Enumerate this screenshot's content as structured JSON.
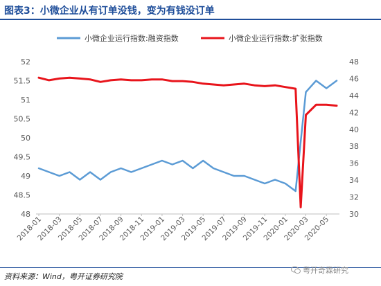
{
  "header": {
    "title": "图表3：小微企业从有订单没钱，变为有钱没订单"
  },
  "footer": {
    "source": "资料来源：Wind，粤开证券研究院",
    "watermark": "粤开奇霖研究"
  },
  "chart_data": {
    "type": "line",
    "title": "",
    "xlabel": "",
    "ylabel": "",
    "x_tick_labels": [
      "2018-01",
      "2018-03",
      "2018-05",
      "2018-07",
      "2018-09",
      "2018-11",
      "2019-01",
      "2019-03",
      "2019-05",
      "2019-07",
      "2019-09",
      "2019-11",
      "2020-01",
      "2020-03",
      "2020-05"
    ],
    "left_axis": {
      "ylim": [
        48,
        52
      ],
      "ticks": [
        48,
        48.5,
        49,
        49.5,
        50,
        50.5,
        51,
        51.5,
        52
      ]
    },
    "right_axis": {
      "ylim": [
        30,
        48
      ],
      "ticks": [
        30,
        32,
        34,
        36,
        38,
        40,
        42,
        44,
        46,
        48
      ]
    },
    "legend_position": "top",
    "grid": false,
    "x_step": 1,
    "series": [
      {
        "name": "小微企业运行指数:融资指数",
        "axis": "left",
        "color": "#5b9bd5",
        "x": [
          2018.0,
          2018.0833,
          2018.1667,
          2018.25,
          2018.3333,
          2018.4167,
          2018.5,
          2018.5833,
          2018.6667,
          2018.75,
          2018.8333,
          2018.9167,
          2019.0,
          2019.0833,
          2019.1667,
          2019.25,
          2019.3333,
          2019.4167,
          2019.5,
          2019.5833,
          2019.6667,
          2019.75,
          2019.8333,
          2019.9167,
          2020.0,
          2020.0833,
          2020.1667,
          2020.25,
          2020.3333,
          2020.4167
        ],
        "values": [
          49.2,
          49.1,
          49.0,
          49.1,
          48.9,
          49.1,
          48.9,
          49.1,
          49.2,
          49.1,
          49.2,
          49.3,
          49.4,
          49.3,
          49.4,
          49.2,
          49.4,
          49.2,
          49.1,
          49.0,
          49.0,
          48.9,
          48.8,
          48.9,
          48.8,
          48.6,
          51.2,
          51.5,
          51.3,
          51.5
        ]
      },
      {
        "name": "小微企业运行指数:扩张指数",
        "axis": "right",
        "color": "#e8141b",
        "x": [
          2018.0,
          2018.0833,
          2018.1667,
          2018.25,
          2018.3333,
          2018.4167,
          2018.5,
          2018.5833,
          2018.6667,
          2018.75,
          2018.8333,
          2018.9167,
          2019.0,
          2019.0833,
          2019.1667,
          2019.25,
          2019.3333,
          2019.4167,
          2019.5,
          2019.5833,
          2019.6667,
          2019.75,
          2019.8333,
          2019.9167,
          2020.0,
          2020.0833,
          2020.125,
          2020.1667,
          2020.25,
          2020.3333,
          2020.4167
        ],
        "values": [
          46.1,
          45.8,
          46.0,
          46.1,
          46.0,
          45.9,
          45.6,
          45.8,
          45.9,
          45.8,
          45.8,
          45.9,
          45.9,
          45.7,
          45.7,
          45.6,
          45.4,
          45.3,
          45.2,
          45.3,
          45.4,
          45.2,
          45.1,
          45.2,
          45.0,
          44.8,
          30.8,
          41.7,
          42.9,
          42.9,
          42.8
        ]
      }
    ]
  }
}
